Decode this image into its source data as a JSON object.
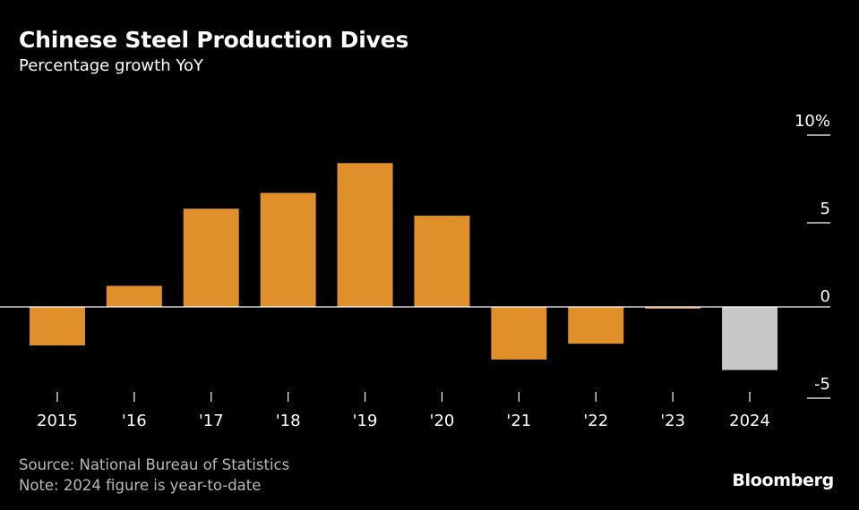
{
  "header": {
    "title": "Chinese Steel Production Dives",
    "subtitle": "Percentage growth YoY"
  },
  "footer": {
    "source": "Source: National Bureau of Statistics",
    "note": "Note: 2024 figure is year-to-date",
    "brand": "Bloomberg"
  },
  "colors": {
    "background": "#000000",
    "bar": "#e0902b",
    "bar_highlight": "#c8c8c8",
    "axis": "#ffffff",
    "text": "#ffffff"
  },
  "chart_data": {
    "type": "bar",
    "title": "Chinese Steel Production Dives",
    "subtitle": "Percentage growth YoY",
    "categories": [
      "2015",
      "'16",
      "'17",
      "'18",
      "'19",
      "'20",
      "'21",
      "'22",
      "'23",
      "2024"
    ],
    "values": [
      -2.2,
      1.2,
      5.6,
      6.5,
      8.2,
      5.2,
      -3.0,
      -2.1,
      -0.1,
      -3.6
    ],
    "highlight_index": 9,
    "ylim": [
      -5,
      10
    ],
    "yticks": [
      {
        "value": 10,
        "label": "10%"
      },
      {
        "value": 5,
        "label": "5"
      },
      {
        "value": 0,
        "label": "0"
      },
      {
        "value": -5,
        "label": "-5"
      }
    ],
    "y_axis_position": "right",
    "grid": false
  }
}
